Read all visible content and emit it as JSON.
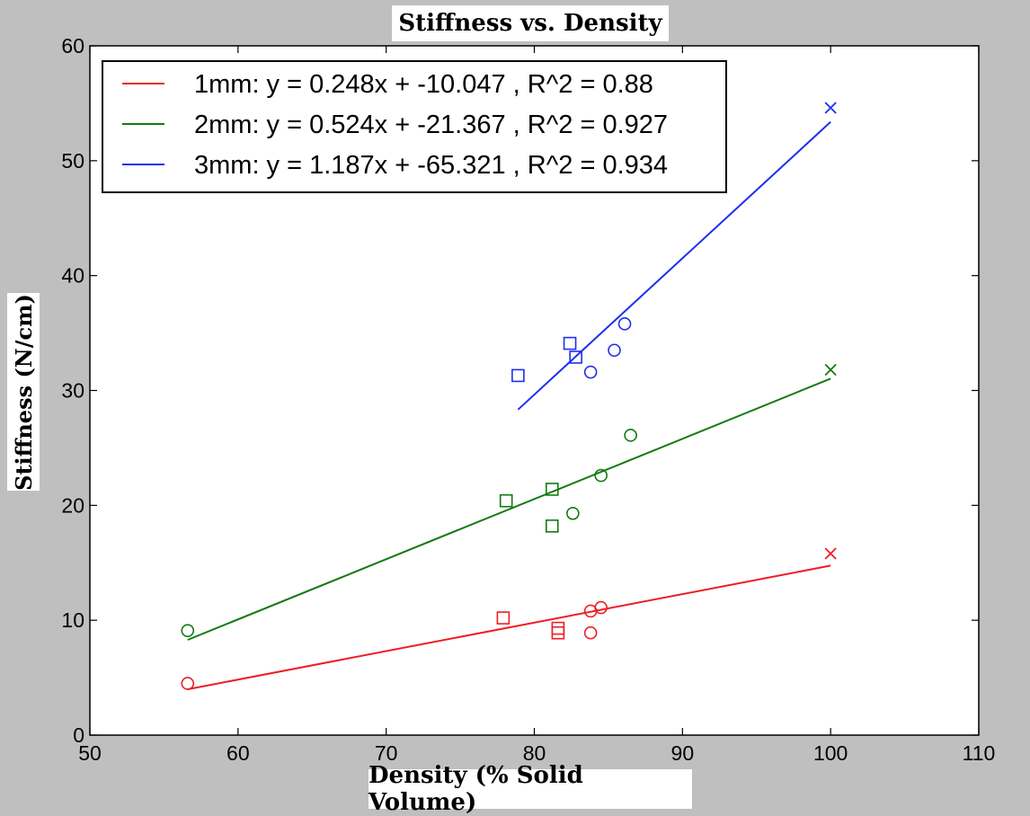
{
  "chart_data": {
    "type": "scatter",
    "title": "Stiffness vs. Density",
    "xlabel": "Density (% Solid Volume)",
    "ylabel": "Stiffness (N/cm)",
    "xlim": [
      50,
      110
    ],
    "ylim": [
      0,
      60
    ],
    "xticks": [
      50,
      60,
      70,
      80,
      90,
      100,
      110
    ],
    "yticks": [
      0,
      10,
      20,
      30,
      40,
      50,
      60
    ],
    "grid": false,
    "legend_position": "top-left",
    "series": [
      {
        "name": "1mm: y = 0.248x + -10.047 , R^2 = 0.88",
        "color": "#ee1c24",
        "fit": {
          "slope": 0.248,
          "intercept": -10.047,
          "x_range": [
            56.6,
            100
          ]
        },
        "circles": [
          [
            56.6,
            4.5
          ],
          [
            83.8,
            10.8
          ],
          [
            84.5,
            11.1
          ],
          [
            83.8,
            8.9
          ]
        ],
        "squares": [
          [
            77.9,
            10.2
          ],
          [
            81.6,
            9.3
          ],
          [
            81.6,
            8.9
          ]
        ],
        "crosses": [
          [
            100,
            15.8
          ]
        ]
      },
      {
        "name": "2mm: y = 0.524x + -21.367 , R^2 = 0.927",
        "color": "#127a12",
        "fit": {
          "slope": 0.524,
          "intercept": -21.367,
          "x_range": [
            56.6,
            100
          ]
        },
        "circles": [
          [
            56.6,
            9.1
          ],
          [
            82.6,
            19.3
          ],
          [
            84.5,
            22.6
          ],
          [
            86.5,
            26.1
          ]
        ],
        "squares": [
          [
            78.1,
            20.4
          ],
          [
            81.2,
            21.4
          ],
          [
            81.2,
            18.2
          ]
        ],
        "crosses": [
          [
            100,
            31.8
          ]
        ]
      },
      {
        "name": "3mm: y = 1.187x + -65.321 , R^2 = 0.934",
        "color": "#1c2ff0",
        "fit": {
          "slope": 1.187,
          "intercept": -65.321,
          "x_range": [
            78.9,
            100
          ]
        },
        "circles": [
          [
            83.8,
            31.6
          ],
          [
            85.4,
            33.5
          ],
          [
            86.1,
            35.8
          ]
        ],
        "squares": [
          [
            78.9,
            31.3
          ],
          [
            82.4,
            34.1
          ],
          [
            82.8,
            32.9
          ]
        ],
        "crosses": [
          [
            100,
            54.6
          ]
        ]
      }
    ]
  }
}
